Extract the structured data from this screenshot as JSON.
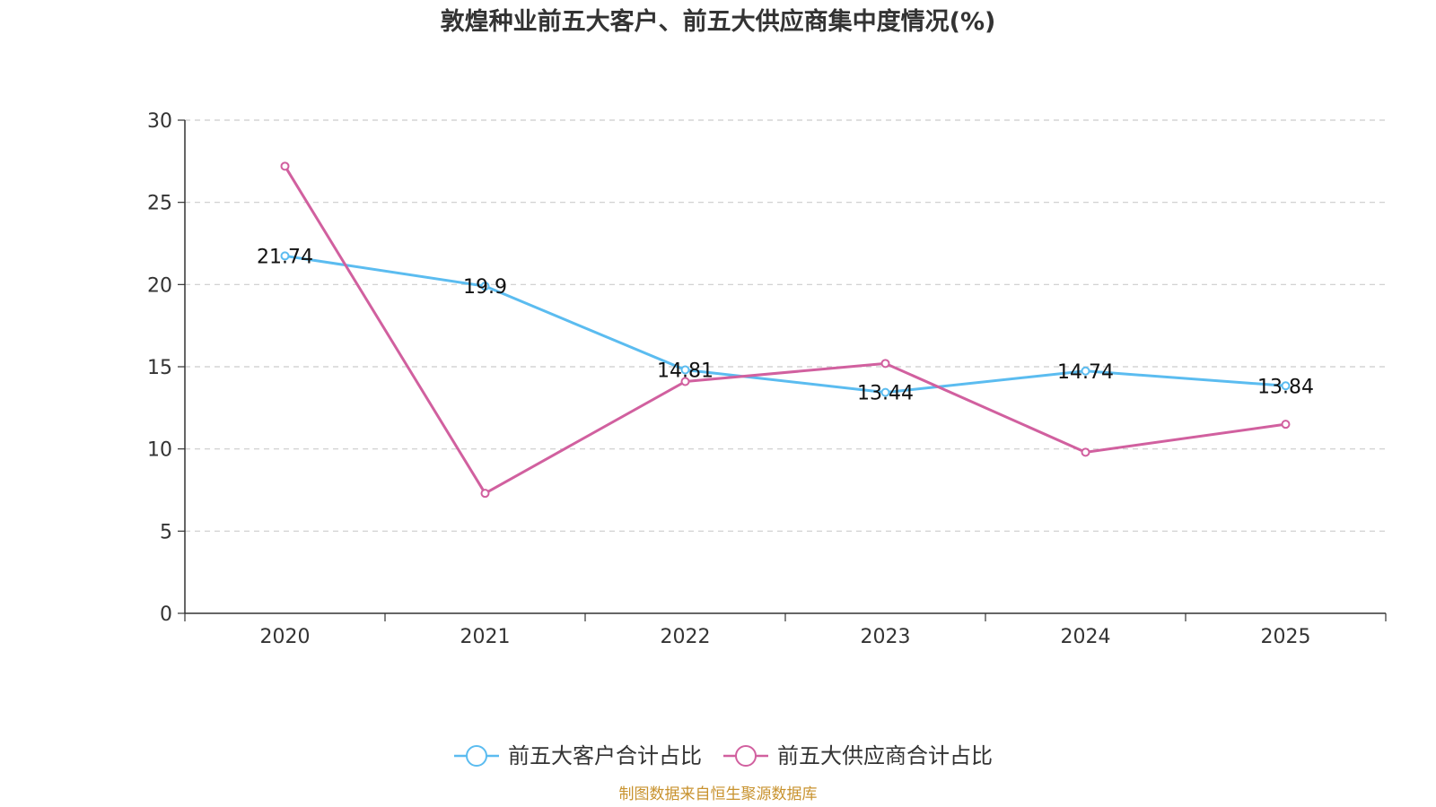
{
  "chart_data": {
    "type": "line",
    "title": "敦煌种业前五大客户、前五大供应商集中度情况(%)",
    "categories": [
      "2020",
      "2021",
      "2022",
      "2023",
      "2024",
      "2025"
    ],
    "ylim": [
      0,
      30
    ],
    "yticks": [
      "0",
      "5",
      "10",
      "15",
      "20",
      "25",
      "30"
    ],
    "grid": true,
    "legend_position": "bottom-center",
    "series": [
      {
        "name": "前五大客户合计占比",
        "color": "#5bbcf0",
        "values": [
          21.74,
          19.9,
          14.81,
          13.44,
          14.74,
          13.84
        ],
        "labels": [
          "21.74",
          "19.9",
          "14.81",
          "13.44",
          "14.74",
          "13.84"
        ]
      },
      {
        "name": "前五大供应商合计占比",
        "color": "#d1609f",
        "values": [
          27.2,
          7.3,
          14.1,
          15.2,
          9.8,
          11.5
        ]
      }
    ],
    "source": "制图数据来自恒生聚源数据库"
  }
}
